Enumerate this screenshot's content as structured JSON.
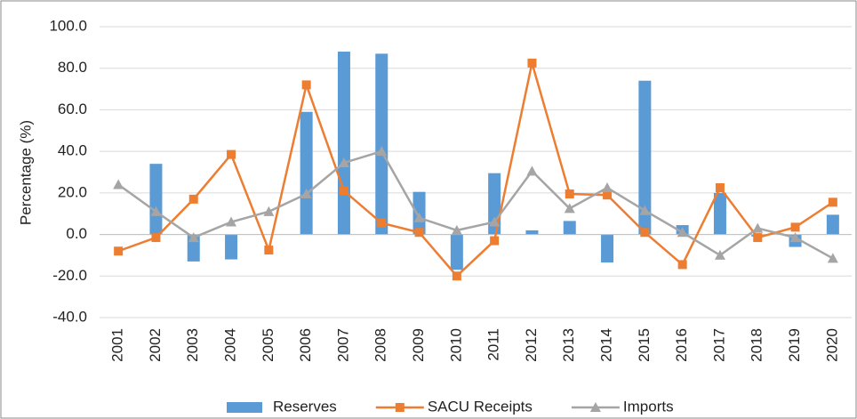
{
  "chart_data": {
    "type": "bar",
    "y_label": "Percentage (%)",
    "categories": [
      "2001",
      "2002",
      "2003",
      "2004",
      "2005",
      "2006",
      "2007",
      "2008",
      "2009",
      "2010",
      "2011",
      "2012",
      "2013",
      "2014",
      "2015",
      "2016",
      "2017",
      "2018",
      "2019",
      "2020"
    ],
    "series": [
      {
        "name": "Reserves",
        "type": "bar",
        "color": "#5b9bd5",
        "values": [
          0,
          34,
          -13,
          -12,
          0,
          59,
          88,
          87,
          20.5,
          -17,
          29.5,
          2,
          6.5,
          -13.5,
          74,
          4.5,
          20,
          -1,
          -6,
          9.5
        ]
      },
      {
        "name": "SACU Receipts",
        "type": "line",
        "marker": "square",
        "color": "#ed7d31",
        "values": [
          -8,
          -1.5,
          17,
          38.5,
          -7.5,
          72,
          21,
          5.5,
          1,
          -20,
          -3,
          82.5,
          19.5,
          19,
          1,
          -14.5,
          22.5,
          -1.5,
          3.5,
          15.5
        ]
      },
      {
        "name": "Imports",
        "type": "line",
        "marker": "triangle",
        "color": "#a5a5a5",
        "values": [
          24,
          11,
          -1.5,
          6,
          11,
          19.5,
          34.5,
          40,
          8,
          2,
          6,
          30.5,
          12.5,
          22.5,
          11.5,
          1,
          -10,
          3,
          -1.5,
          -11.5
        ]
      }
    ],
    "ylim": [
      -40,
      100
    ],
    "yticks": [
      {
        "value": -40,
        "label": "-40.0"
      },
      {
        "value": -20,
        "label": "-20.0"
      },
      {
        "value": 0,
        "label": "0.0"
      },
      {
        "value": 20,
        "label": "20.0"
      },
      {
        "value": 40,
        "label": "40.0"
      },
      {
        "value": 60,
        "label": "60.0"
      },
      {
        "value": 80,
        "label": "80.0"
      },
      {
        "value": 100,
        "label": "100.0"
      }
    ],
    "grid": true,
    "legend": "bottom"
  }
}
